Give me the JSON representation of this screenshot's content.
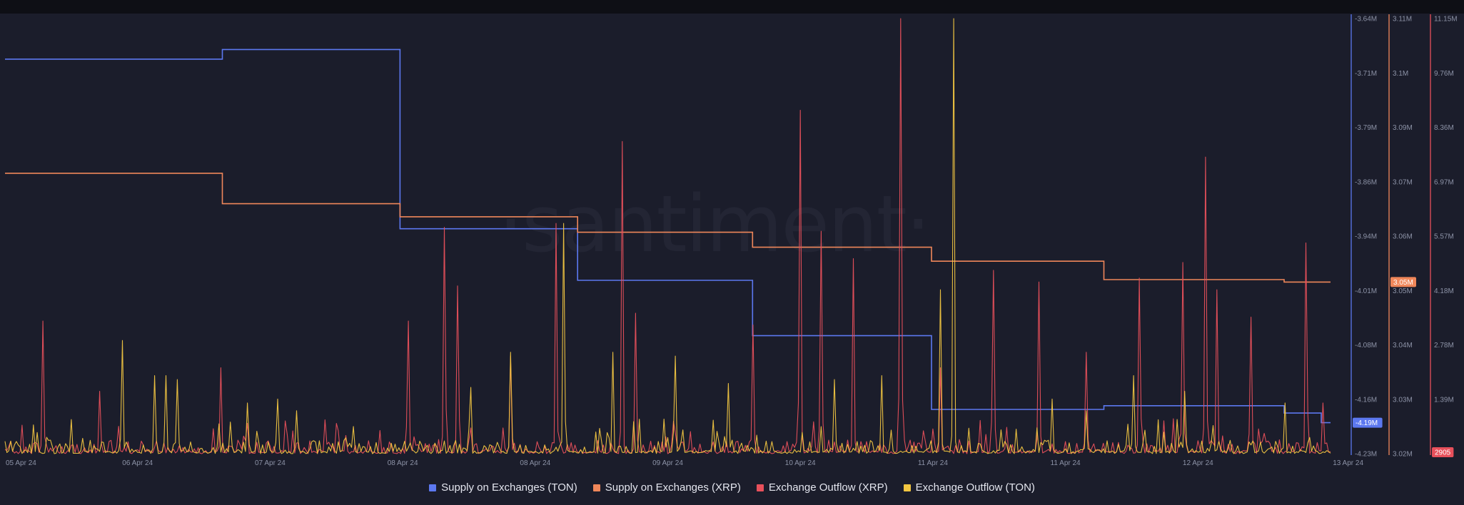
{
  "brand": {
    "watermark": "·santiment·"
  },
  "chart_data": {
    "type": "line",
    "title": "",
    "xlabel": "",
    "x_tick_labels": [
      "05 Apr 24",
      "06 Apr 24",
      "07 Apr 24",
      "08 Apr 24",
      "08 Apr 24",
      "09 Apr 24",
      "10 Apr 24",
      "11 Apr 24",
      "11 Apr 24",
      "12 Apr 24",
      "13 Apr 24"
    ],
    "axes": [
      {
        "id": "ton_supply",
        "color": "#5c78f0",
        "range": [
          -4.23,
          -3.64
        ],
        "unit": "M",
        "ticks": [
          "-3.64M",
          "-3.71M",
          "-3.79M",
          "-3.86M",
          "-3.94M",
          "-4.01M",
          "-4.08M",
          "-4.16M",
          "-4.23M"
        ],
        "current_label": "-4.19M"
      },
      {
        "id": "xrp_supply",
        "color": "#f0875a",
        "range": [
          3.02,
          3.11
        ],
        "unit": "M",
        "ticks": [
          "3.11M",
          "3.1M",
          "3.09M",
          "3.07M",
          "3.06M",
          "3.05M",
          "3.04M",
          "3.03M",
          "3.02M"
        ],
        "current_label": "3.05M"
      },
      {
        "id": "outflow",
        "color": "#e8505b",
        "range": [
          0,
          11.15
        ],
        "unit": "M",
        "ticks": [
          "11.15M",
          "9.76M",
          "8.36M",
          "6.97M",
          "5.57M",
          "4.18M",
          "2.78M",
          "1.39M",
          "2905"
        ],
        "current_label": "2905"
      }
    ],
    "series": [
      {
        "name": "Supply on Exchanges (TON)",
        "color": "#5c78f0",
        "axis": "ton_supply",
        "shape": "step",
        "x": [
          0,
          1.64,
          2.98,
          4.32,
          5.64,
          6.99,
          8.29,
          9.65,
          9.93
        ],
        "values": [
          -3.695,
          -3.682,
          -3.925,
          -3.995,
          -4.07,
          -4.17,
          -4.165,
          -4.175,
          -4.188
        ]
      },
      {
        "name": "Supply on Exchanges (XRP)",
        "color": "#f0875a",
        "axis": "xrp_supply",
        "shape": "step",
        "x": [
          0,
          1.64,
          2.98,
          4.32,
          5.64,
          6.99,
          8.29,
          9.65,
          9.93
        ],
        "values": [
          3.078,
          3.0717,
          3.069,
          3.0658,
          3.0627,
          3.0598,
          3.056,
          3.0555,
          3.0555
        ]
      },
      {
        "name": "Exchange Outflow (XRP)",
        "color": "#e8505b",
        "axis": "outflow",
        "shape": "spikes",
        "peaks": [
          {
            "x": 0.29,
            "v": 3.4
          },
          {
            "x": 0.72,
            "v": 1.6
          },
          {
            "x": 1.63,
            "v": 2.2
          },
          {
            "x": 3.04,
            "v": 3.4
          },
          {
            "x": 3.32,
            "v": 5.8
          },
          {
            "x": 3.41,
            "v": 4.3
          },
          {
            "x": 3.82,
            "v": 2.5
          },
          {
            "x": 4.15,
            "v": 5.9
          },
          {
            "x": 4.65,
            "v": 8.0
          },
          {
            "x": 4.75,
            "v": 3.6
          },
          {
            "x": 5.64,
            "v": 3.3
          },
          {
            "x": 6.0,
            "v": 8.8
          },
          {
            "x": 6.16,
            "v": 5.7
          },
          {
            "x": 6.4,
            "v": 5.0
          },
          {
            "x": 6.75,
            "v": 11.15
          },
          {
            "x": 7.06,
            "v": 2.2
          },
          {
            "x": 7.45,
            "v": 4.7
          },
          {
            "x": 7.8,
            "v": 4.4
          },
          {
            "x": 8.15,
            "v": 2.6
          },
          {
            "x": 8.55,
            "v": 4.5
          },
          {
            "x": 8.88,
            "v": 4.9
          },
          {
            "x": 9.06,
            "v": 7.6
          },
          {
            "x": 9.14,
            "v": 4.2
          },
          {
            "x": 9.4,
            "v": 3.5
          },
          {
            "x": 9.81,
            "v": 5.4
          },
          {
            "x": 9.94,
            "v": 1.3
          }
        ]
      },
      {
        "name": "Exchange Outflow (TON)",
        "color": "#f2c641",
        "axis": "outflow",
        "shape": "spikes",
        "peaks": [
          {
            "x": 0.88,
            "v": 2.9
          },
          {
            "x": 1.13,
            "v": 2.0
          },
          {
            "x": 1.22,
            "v": 2.0
          },
          {
            "x": 1.3,
            "v": 1.9
          },
          {
            "x": 1.83,
            "v": 1.3
          },
          {
            "x": 2.05,
            "v": 1.4
          },
          {
            "x": 2.2,
            "v": 1.1
          },
          {
            "x": 3.52,
            "v": 1.7
          },
          {
            "x": 3.82,
            "v": 2.6
          },
          {
            "x": 4.22,
            "v": 5.9
          },
          {
            "x": 4.58,
            "v": 2.6
          },
          {
            "x": 5.05,
            "v": 2.5
          },
          {
            "x": 5.45,
            "v": 1.8
          },
          {
            "x": 6.25,
            "v": 1.9
          },
          {
            "x": 6.62,
            "v": 2.0
          },
          {
            "x": 7.05,
            "v": 4.2
          },
          {
            "x": 7.15,
            "v": 11.15
          },
          {
            "x": 7.9,
            "v": 1.4
          },
          {
            "x": 8.15,
            "v": 1.1
          },
          {
            "x": 8.52,
            "v": 2.0
          },
          {
            "x": 8.9,
            "v": 1.6
          },
          {
            "x": 9.66,
            "v": 1.3
          }
        ]
      }
    ]
  },
  "legend": [
    {
      "label": "Supply on Exchanges (TON)",
      "color": "#5c78f0"
    },
    {
      "label": "Supply on Exchanges (XRP)",
      "color": "#f0875a"
    },
    {
      "label": "Exchange Outflow (XRP)",
      "color": "#e8505b"
    },
    {
      "label": "Exchange Outflow (TON)",
      "color": "#f2c641"
    }
  ]
}
